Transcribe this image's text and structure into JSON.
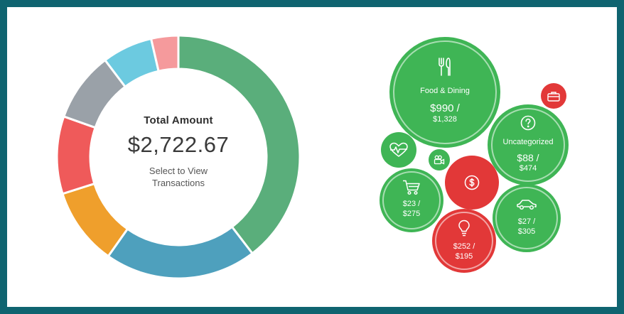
{
  "donut": {
    "title": "Total Amount",
    "amount": "$2,722.67",
    "select_line1": "Select to View",
    "select_line2": "Transactions",
    "segments": [
      {
        "fraction": 0.384,
        "color": "#5aae7b"
      },
      {
        "fraction": 0.196,
        "color": "#4ea0bd"
      },
      {
        "fraction": 0.1,
        "color": "#ef9f2c"
      },
      {
        "fraction": 0.1,
        "color": "#ef5a5a"
      },
      {
        "fraction": 0.09,
        "color": "#9aa1a8"
      },
      {
        "fraction": 0.065,
        "color": "#6ccae0"
      },
      {
        "fraction": 0.035,
        "color": "#f59a9c"
      }
    ]
  },
  "bubbles": {
    "food": {
      "label": "Food & Dining",
      "amount": "$990 /",
      "budget": "$1,328",
      "icon": "fork-knife-icon",
      "color": "#3fb555"
    },
    "uncategorized": {
      "label": "Uncategorized",
      "amount": "$88 /",
      "budget": "$474",
      "icon": "question-icon",
      "color": "#3fb555"
    },
    "shopping": {
      "amount": "$23 /",
      "budget": "$275",
      "icon": "cart-icon",
      "color": "#3fb555"
    },
    "auto": {
      "amount": "$27 /",
      "budget": "$305",
      "icon": "car-icon",
      "color": "#3fb555"
    },
    "utilities": {
      "amount": "$252 /",
      "budget": "$195",
      "icon": "lightbulb-icon",
      "color": "#e23838"
    },
    "fees": {
      "icon": "dollar-icon",
      "color": "#e23838"
    },
    "business": {
      "icon": "briefcase-icon",
      "color": "#e23838"
    },
    "health": {
      "icon": "heartbeat-icon",
      "color": "#3fb555"
    },
    "entertainment": {
      "icon": "camera-icon",
      "color": "#3fb555"
    }
  }
}
